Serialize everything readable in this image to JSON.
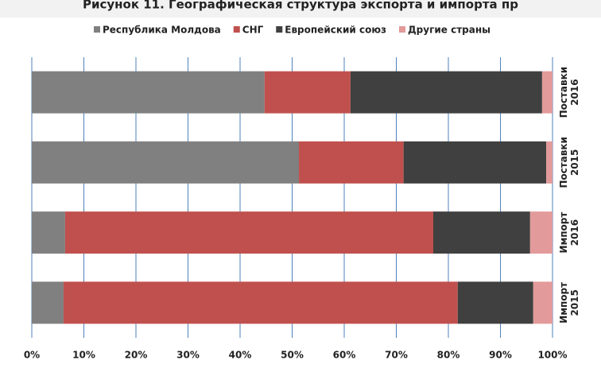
{
  "chart_data": {
    "type": "stacked_barh",
    "title": "Рисунок 11. Географическая структура экспорта и импорта пр",
    "categories": [
      [
        "Поставки",
        "2016"
      ],
      [
        "Поставки",
        "2015"
      ],
      [
        "Импорт",
        "2016"
      ],
      [
        "Импорт",
        "2015"
      ]
    ],
    "series": [
      {
        "name": "Республика Молдова",
        "color": "#808080",
        "values": [
          44.7,
          51.3,
          6.4,
          6.1
        ]
      },
      {
        "name": "СНГ",
        "color": "#c0504d",
        "values": [
          16.5,
          20.1,
          70.7,
          75.7
        ]
      },
      {
        "name": "Европейский союз",
        "color": "#404040",
        "values": [
          36.8,
          27.4,
          18.6,
          14.5
        ]
      },
      {
        "name": "Другие страны",
        "color": "#e39a9a",
        "values": [
          2.0,
          1.2,
          4.3,
          3.7
        ]
      }
    ],
    "xlim": [
      0,
      100
    ],
    "xticks": [
      {
        "value": 0,
        "label": "0%"
      },
      {
        "value": 10,
        "label": "10%"
      },
      {
        "value": 20,
        "label": "20%"
      },
      {
        "value": 30,
        "label": "30%"
      },
      {
        "value": 40,
        "label": "40%"
      },
      {
        "value": 50,
        "label": "50%"
      },
      {
        "value": 60,
        "label": "60%"
      },
      {
        "value": 70,
        "label": "70%"
      },
      {
        "value": 80,
        "label": "80%"
      },
      {
        "value": 90,
        "label": "90%"
      },
      {
        "value": 100,
        "label": "100%"
      }
    ],
    "grid": true,
    "legend": "top"
  }
}
